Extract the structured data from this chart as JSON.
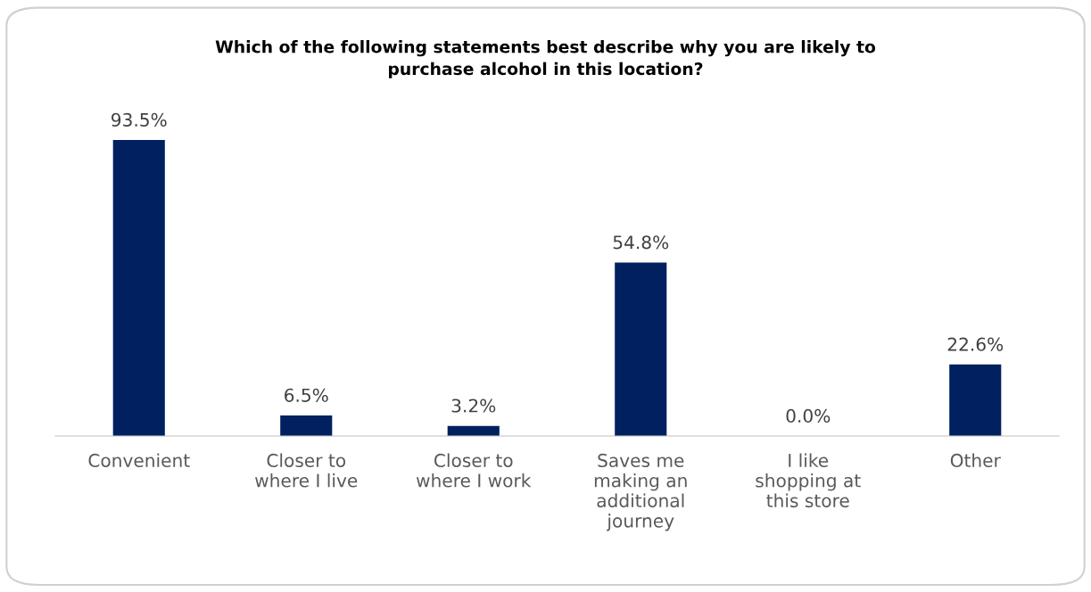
{
  "chart_data": {
    "type": "bar",
    "title": "Which of the following statements best describe why you are likely to\npurchase alcohol in this location?",
    "categories": [
      "Convenient",
      "Closer to\nwhere I live",
      "Closer to\nwhere I work",
      "Saves me\nmaking an\nadditional\njourney",
      "I like\nshopping at\nthis store",
      "Other"
    ],
    "values": [
      93.5,
      6.5,
      3.2,
      54.8,
      0.0,
      22.6
    ],
    "value_labels": [
      "93.5%",
      "6.5%",
      "3.2%",
      "54.8%",
      "0.0%",
      "22.6%"
    ],
    "color": "#002060",
    "tick_labels": "x",
    "grid": false
  }
}
